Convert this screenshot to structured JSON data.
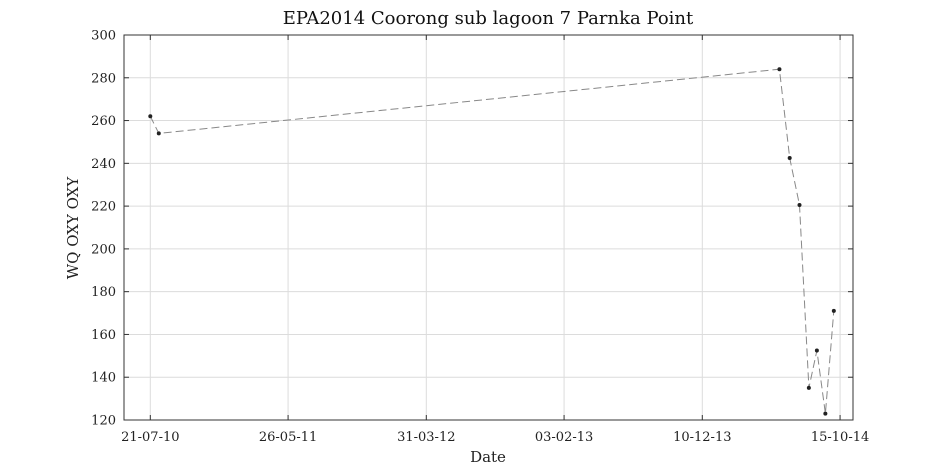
{
  "chart_data": {
    "type": "line",
    "title": "EPA2014 Coorong sub lagoon 7 Parnka Point",
    "xlabel": "Date",
    "ylabel": "WQ OXY OXY",
    "x_ticks": [
      "21-07-10",
      "26-05-11",
      "31-03-12",
      "03-02-13",
      "10-12-13",
      "15-10-14"
    ],
    "x_tick_dates": [
      "2010-07-21",
      "2011-05-26",
      "2012-03-31",
      "2013-02-03",
      "2013-12-10",
      "2014-10-15"
    ],
    "xlim": [
      "2010-05-23",
      "2014-11-13"
    ],
    "ylim": [
      120,
      300
    ],
    "y_ticks": [
      120,
      140,
      160,
      180,
      200,
      220,
      240,
      260,
      280,
      300
    ],
    "grid": true,
    "series": [
      {
        "x": [
          "2010-07-21",
          "2010-08-09",
          "2014-06-01",
          "2014-06-24",
          "2014-07-16",
          "2014-08-06",
          "2014-08-24",
          "2014-09-12",
          "2014-10-01"
        ],
        "y": [
          262,
          254,
          284,
          242.5,
          220.5,
          135,
          152.5,
          123,
          171
        ]
      }
    ],
    "colors": {
      "line": "#888888",
      "marker": "#222222",
      "grid": "#dcdcdc",
      "axis": "#333333"
    }
  }
}
